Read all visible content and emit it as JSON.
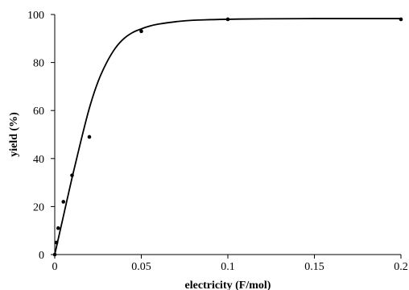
{
  "chart_data": {
    "type": "scatter",
    "title": "",
    "xlabel": "electricity (F/mol)",
    "ylabel": "yield (%)",
    "xlim": [
      0,
      0.2
    ],
    "ylim": [
      0,
      100
    ],
    "x_ticks": [
      0,
      0.05,
      0.1,
      0.15,
      0.2
    ],
    "x_tick_labels": [
      "0",
      "0.05",
      "0.1",
      "0.15",
      "0.2"
    ],
    "y_ticks": [
      0,
      20,
      40,
      60,
      80,
      100
    ],
    "y_tick_labels": [
      "0",
      "20",
      "40",
      "60",
      "80",
      "100"
    ],
    "grid": false,
    "series": [
      {
        "kind": "points",
        "x": [
          0,
          0.001,
          0.002,
          0.005,
          0.01,
          0.02,
          0.05,
          0.1,
          0.2
        ],
        "y": [
          0,
          5,
          11,
          22,
          33,
          49,
          93,
          98,
          98
        ],
        "color": "#000000"
      },
      {
        "kind": "fitted-curve",
        "x": [
          0,
          0.005,
          0.01,
          0.015,
          0.02,
          0.025,
          0.03,
          0.035,
          0.04,
          0.045,
          0.05,
          0.055,
          0.06,
          0.07,
          0.08,
          0.1,
          0.12,
          0.15,
          0.2
        ],
        "y": [
          0,
          16,
          32,
          47,
          61,
          72,
          80,
          86,
          90,
          92.5,
          94,
          95.2,
          96,
          97,
          97.6,
          98,
          98.2,
          98.3,
          98.3
        ],
        "color": "#000000"
      }
    ]
  }
}
